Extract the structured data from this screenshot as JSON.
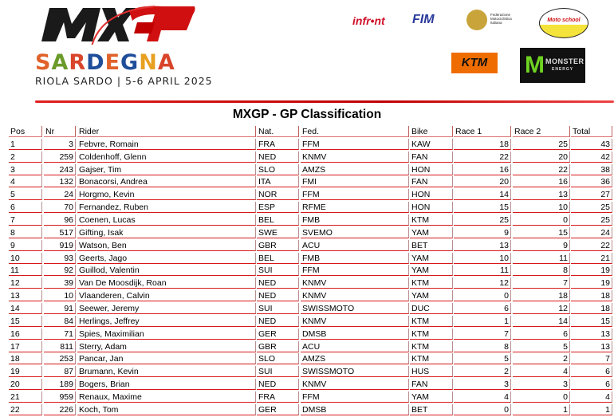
{
  "header": {
    "logo_text": "MXGP",
    "event_name": "SARDEGNA",
    "event_subtitle": "RIOLA SARDO | 5-6 APRIL 2025",
    "sponsors": [
      "infront",
      "FIM",
      "Federazione Motociclistica Italiana",
      "Moto school",
      "KTM",
      "MONSTER ENERGY"
    ]
  },
  "colors": {
    "accent": "#d81818",
    "ktm": "#ef6c00",
    "monster": "#6ed321"
  },
  "title": "MXGP - GP Classification",
  "table": {
    "columns": [
      "Pos",
      "Nr",
      "Rider",
      "Nat.",
      "Fed.",
      "Bike",
      "Race 1",
      "Race 2",
      "Total"
    ],
    "rows": [
      [
        "1",
        "3",
        "Febvre, Romain",
        "FRA",
        "FFM",
        "KAW",
        "18",
        "25",
        "43"
      ],
      [
        "2",
        "259",
        "Coldenhoff, Glenn",
        "NED",
        "KNMV",
        "FAN",
        "22",
        "20",
        "42"
      ],
      [
        "3",
        "243",
        "Gajser, Tim",
        "SLO",
        "AMZS",
        "HON",
        "16",
        "22",
        "38"
      ],
      [
        "4",
        "132",
        "Bonacorsi, Andrea",
        "ITA",
        "FMI",
        "FAN",
        "20",
        "16",
        "36"
      ],
      [
        "5",
        "24",
        "Horgmo, Kevin",
        "NOR",
        "FFM",
        "HON",
        "14",
        "13",
        "27"
      ],
      [
        "6",
        "70",
        "Fernandez, Ruben",
        "ESP",
        "RFME",
        "HON",
        "15",
        "10",
        "25"
      ],
      [
        "7",
        "96",
        "Coenen, Lucas",
        "BEL",
        "FMB",
        "KTM",
        "25",
        "0",
        "25"
      ],
      [
        "8",
        "517",
        "Gifting, Isak",
        "SWE",
        "SVEMO",
        "YAM",
        "9",
        "15",
        "24"
      ],
      [
        "9",
        "919",
        "Watson, Ben",
        "GBR",
        "ACU",
        "BET",
        "13",
        "9",
        "22"
      ],
      [
        "10",
        "93",
        "Geerts, Jago",
        "BEL",
        "FMB",
        "YAM",
        "10",
        "11",
        "21"
      ],
      [
        "11",
        "92",
        "Guillod, Valentin",
        "SUI",
        "FFM",
        "YAM",
        "11",
        "8",
        "19"
      ],
      [
        "12",
        "39",
        "Van De Moosdijk, Roan",
        "NED",
        "KNMV",
        "KTM",
        "12",
        "7",
        "19"
      ],
      [
        "13",
        "10",
        "Vlaanderen, Calvin",
        "NED",
        "KNMV",
        "YAM",
        "0",
        "18",
        "18"
      ],
      [
        "14",
        "91",
        "Seewer, Jeremy",
        "SUI",
        "SWISSMOTO",
        "DUC",
        "6",
        "12",
        "18"
      ],
      [
        "15",
        "84",
        "Herlings, Jeffrey",
        "NED",
        "KNMV",
        "KTM",
        "1",
        "14",
        "15"
      ],
      [
        "16",
        "71",
        "Spies, Maximilian",
        "GER",
        "DMSB",
        "KTM",
        "7",
        "6",
        "13"
      ],
      [
        "17",
        "811",
        "Sterry, Adam",
        "GBR",
        "ACU",
        "KTM",
        "8",
        "5",
        "13"
      ],
      [
        "18",
        "253",
        "Pancar, Jan",
        "SLO",
        "AMZS",
        "KTM",
        "5",
        "2",
        "7"
      ],
      [
        "19",
        "87",
        "Brumann, Kevin",
        "SUI",
        "SWISSMOTO",
        "HUS",
        "2",
        "4",
        "6"
      ],
      [
        "20",
        "189",
        "Bogers, Brian",
        "NED",
        "KNMV",
        "FAN",
        "3",
        "3",
        "6"
      ],
      [
        "21",
        "959",
        "Renaux, Maxime",
        "FRA",
        "FFM",
        "YAM",
        "4",
        "0",
        "4"
      ],
      [
        "22",
        "226",
        "Koch, Tom",
        "GER",
        "DMSB",
        "BET",
        "0",
        "1",
        "1"
      ]
    ]
  }
}
